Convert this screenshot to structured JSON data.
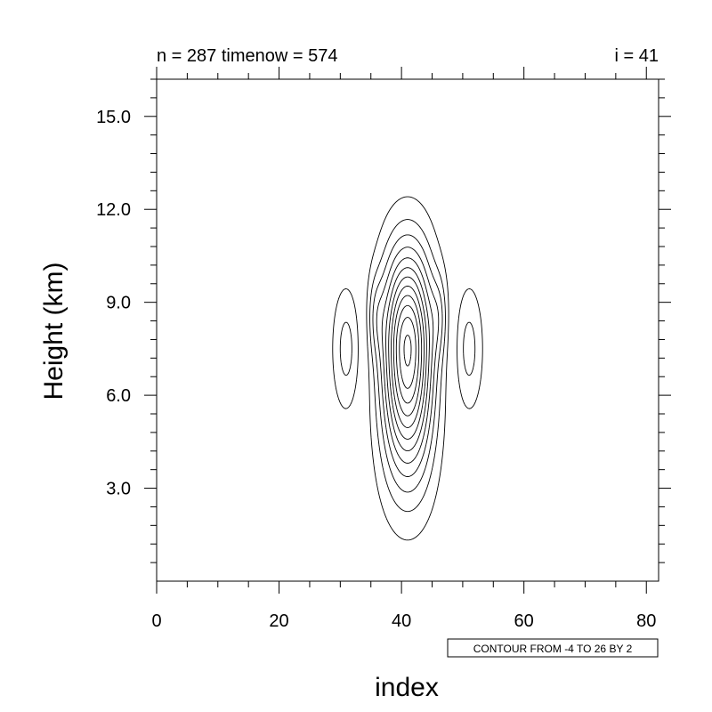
{
  "chart_data": {
    "type": "contour",
    "title_left": "n = 287 timenow = 574",
    "title_right": "i = 41",
    "xlabel": "index",
    "ylabel": "Height (km)",
    "xlim": [
      0,
      82
    ],
    "ylim": [
      0,
      16.2
    ],
    "xticks": [
      0,
      20,
      40,
      60,
      80
    ],
    "xtick_labels": [
      "0",
      "20",
      "40",
      "60",
      "80"
    ],
    "yticks": [
      3,
      6,
      9,
      12,
      15
    ],
    "ytick_labels": [
      "3.0",
      "6.0",
      "9.0",
      "12.0",
      "15.0"
    ],
    "info_label": "CONTOUR FROM -4 TO 26 BY 2",
    "contour_min": -4,
    "contour_max": 26,
    "contour_interval": 2,
    "negative_contours_dashed": true,
    "line_color": "#000000",
    "grid": false
  }
}
